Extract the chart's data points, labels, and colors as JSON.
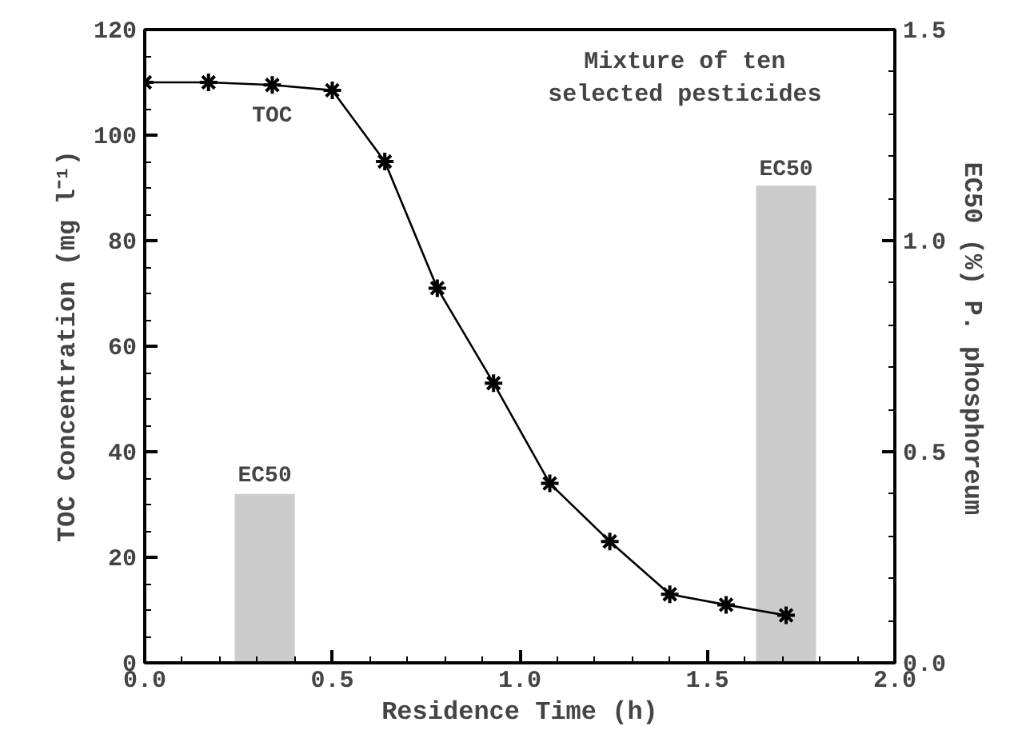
{
  "chart_data": {
    "type": "line",
    "title": "Mixture of ten selected pesticides",
    "xlabel": "Residence Time (h)",
    "ylabel": "TOC Concentration (mg l⁻¹)",
    "y2label": "EC50 (%)  P. phosphoreum",
    "series": [
      {
        "name": "TOC",
        "color": "#000000",
        "marker": "cross",
        "x": [
          0,
          0.17,
          0.34,
          0.5,
          0.64,
          0.78,
          0.93,
          1.08,
          1.24,
          1.4,
          1.55,
          1.71
        ],
        "values": [
          110,
          110,
          109.5,
          108.5,
          95,
          71,
          53,
          34,
          23,
          13,
          11,
          9
        ]
      },
      {
        "type": "bar",
        "axis": "y2",
        "color": "#cccccc",
        "x": [
          0.32,
          1.71
        ],
        "values": [
          0.4,
          1.13
        ]
      }
    ],
    "annotations": [
      {
        "text": "EC50",
        "x": 0.32,
        "y": 32
      },
      {
        "text": "EC50",
        "x": 1.71,
        "y": 90
      }
    ],
    "xlim": [
      0,
      2
    ],
    "ylim": [
      0,
      120
    ],
    "y2lim": [
      0,
      1.5
    ],
    "xticks": [
      {
        "value": 0,
        "label": "0.0"
      },
      {
        "value": 0.5,
        "label": "0.5"
      },
      {
        "value": 1,
        "label": "1.0"
      },
      {
        "value": 1.5,
        "label": "1.5"
      },
      {
        "value": 2,
        "label": "2.0"
      }
    ],
    "yticks": [
      0,
      20,
      40,
      60,
      80,
      100,
      120
    ],
    "y2ticks": [
      {
        "value": 0,
        "label": "0.0"
      },
      {
        "value": 0.5,
        "label": "0.5"
      },
      {
        "value": 1,
        "label": "1.0"
      },
      {
        "value": 1.5,
        "label": "1.5"
      }
    ],
    "grid": false
  }
}
